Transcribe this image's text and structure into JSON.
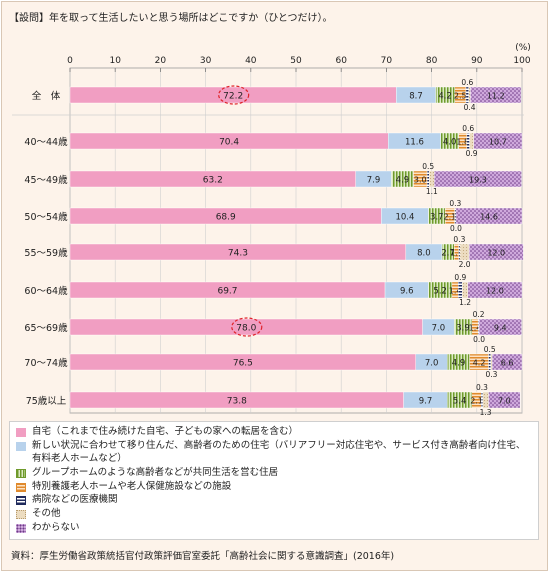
{
  "question": "【設問】年を取って生活したいと思う場所はどこですか（ひとつだけ）。",
  "source": "資料：厚生労働省政策統括官付政策評価官室委託「高齢社会に関する意識調査」(2016年)",
  "chart_data": {
    "type": "bar",
    "orientation": "horizontal",
    "stacked": true,
    "unit_label": "(%)",
    "xlim": [
      0,
      100
    ],
    "xticks": [
      0,
      10,
      20,
      30,
      40,
      50,
      60,
      70,
      80,
      90,
      100
    ],
    "categories": [
      "全　体",
      "40～44歳",
      "45～49歳",
      "50～54歳",
      "55～59歳",
      "60～64歳",
      "65～69歳",
      "70～74歳",
      "75歳以上"
    ],
    "highlighted": [
      {
        "category": "全　体",
        "value": "72.2"
      },
      {
        "category": "65～69歳",
        "value": "78.0"
      }
    ],
    "series": [
      {
        "name": "自宅（これまで住み続けた自宅、子どもの家への転居を含む）",
        "color": "#f19ec2",
        "values": [
          72.2,
          70.4,
          63.2,
          68.9,
          74.3,
          69.7,
          78.0,
          76.5,
          73.8
        ],
        "labels": [
          "72.2",
          "70.4",
          "63.2",
          "68.9",
          "74.3",
          "69.7",
          "78.0",
          "76.5",
          "73.8"
        ]
      },
      {
        "name": "新しい状況に合わせて移り住んだ、高齢者のための住宅（バリアフリー対応住宅や、サービス付き高齢者向け住宅、有料老人ホームなど）",
        "color": "#b8d2ec",
        "values": [
          8.7,
          11.6,
          7.9,
          10.4,
          8.0,
          9.6,
          7.0,
          7.0,
          9.7
        ],
        "labels": [
          "8.7",
          "11.6",
          "7.9",
          "10.4",
          "8.0",
          "9.6",
          "7.0",
          "7.0",
          "9.7"
        ]
      },
      {
        "name": "グループホームのような高齢者などが共同生活を営む住居",
        "color": "#6f9a2c",
        "values": [
          4.2,
          4.0,
          4.9,
          3.7,
          2.7,
          5.2,
          3.9,
          4.9,
          5.4
        ],
        "labels": [
          "4.2",
          "4.0",
          "4.9",
          "3.7",
          "2.7",
          "5.2",
          "3.9",
          "4.9",
          "5.4"
        ]
      },
      {
        "name": "特別養護老人ホームや老人保健施設などの施設",
        "color": "#e08a2c",
        "values": [
          2.5,
          1.8,
          3.0,
          2.1,
          1.0,
          1.4,
          1.4,
          4.2,
          2.1
        ],
        "labels": [
          "2.5",
          "1.8",
          "3.0",
          "2.1",
          "1.0",
          "1.4",
          "1.4",
          "4.2",
          "2.1"
        ]
      },
      {
        "name": "病院などの医療機関",
        "color": "#1f2a5c",
        "values": [
          0.6,
          0.6,
          0.5,
          0.3,
          0.3,
          0.9,
          0.2,
          0.5,
          0.3
        ],
        "labels": [
          "0.6",
          "0.6",
          "0.5",
          "0.3",
          "0.3",
          "0.9",
          "0.2",
          "0.5",
          "0.3"
        ]
      },
      {
        "name": "その他",
        "color": "#ecdcc0",
        "values": [
          0.4,
          0.9,
          1.1,
          0.0,
          2.0,
          1.2,
          0.0,
          0.3,
          1.3
        ],
        "labels": [
          "0.4",
          "0.9",
          "1.1",
          "0.0",
          "2.0",
          "1.2",
          "0.0",
          "0.3",
          "1.3"
        ]
      },
      {
        "name": "わからない",
        "color": "#cfa9dc",
        "values": [
          11.2,
          10.7,
          19.3,
          14.6,
          12.0,
          12.0,
          9.4,
          6.6,
          7.0
        ],
        "labels": [
          "11.2",
          "10.7",
          "19.3",
          "14.6",
          "12.0",
          "12.0",
          "9.4",
          "6.6",
          "7.0"
        ]
      }
    ]
  }
}
